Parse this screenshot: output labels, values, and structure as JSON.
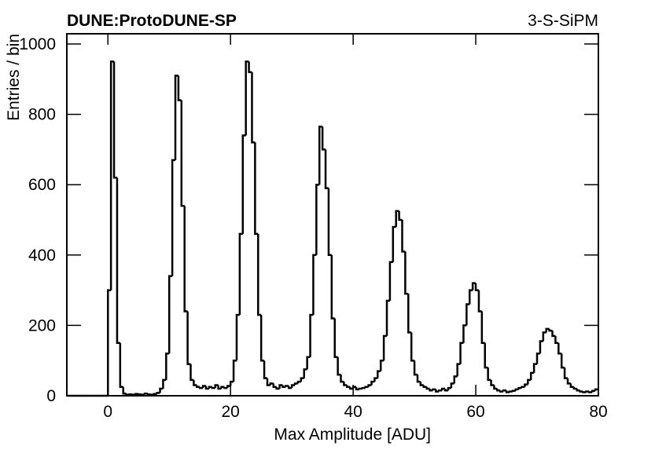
{
  "chart_data": {
    "type": "histogram",
    "title": "DUNE:ProtoDUNE-SP",
    "subtitle": "3-S-SiPM",
    "x_label": "Max Amplitude [ADU]",
    "y_label": "Entries / bin",
    "color": "#000000",
    "xlim": [
      -6.7,
      80
    ],
    "ylim": [
      0,
      1029
    ],
    "xticks": [
      0,
      20,
      40,
      60,
      80
    ],
    "yticks": [
      0,
      200,
      400,
      600,
      800,
      1000
    ],
    "bins": [
      -6.5,
      -6,
      -5.5,
      -5,
      -4.5,
      -4,
      -3.5,
      -3,
      -2.5,
      -2,
      -1.5,
      -1,
      -0.5,
      0,
      0.5,
      1,
      1.5,
      2,
      2.5,
      3,
      3.5,
      4,
      4.5,
      5,
      5.5,
      6,
      6.5,
      7,
      7.5,
      8,
      8.5,
      9,
      9.5,
      10,
      10.5,
      11,
      11.5,
      12,
      12.5,
      13,
      13.5,
      14,
      14.5,
      15,
      15.5,
      16,
      16.5,
      17,
      17.5,
      18,
      18.5,
      19,
      19.5,
      20,
      20.5,
      21,
      21.5,
      22,
      22.5,
      23,
      23.5,
      24,
      24.5,
      25,
      25.5,
      26,
      26.5,
      27,
      27.5,
      28,
      28.5,
      29,
      29.5,
      30,
      30.5,
      31,
      31.5,
      32,
      32.5,
      33,
      33.5,
      34,
      34.5,
      35,
      35.5,
      36,
      36.5,
      37,
      37.5,
      38,
      38.5,
      39,
      39.5,
      40,
      40.5,
      41,
      41.5,
      42,
      42.5,
      43,
      43.5,
      44,
      44.5,
      45,
      45.5,
      46,
      46.5,
      47,
      47.5,
      48,
      48.5,
      49,
      49.5,
      50,
      50.5,
      51,
      51.5,
      52,
      52.5,
      53,
      53.5,
      54,
      54.5,
      55,
      55.5,
      56,
      56.5,
      57,
      57.5,
      58,
      58.5,
      59,
      59.5,
      60,
      60.5,
      61,
      61.5,
      62,
      62.5,
      63,
      63.5,
      64,
      64.5,
      65,
      65.5,
      66,
      66.5,
      67,
      67.5,
      68,
      68.5,
      69,
      69.5,
      70,
      70.5,
      71,
      71.5,
      72,
      72.5,
      73,
      73.5,
      74,
      74.5,
      75,
      75.5,
      76,
      76.5,
      77,
      77.5,
      78,
      78.5,
      79,
      79.5,
      80
    ],
    "values": [
      0,
      0,
      0,
      0,
      0,
      0,
      0,
      0,
      0,
      0,
      0,
      0,
      0,
      300,
      950,
      620,
      150,
      25,
      6,
      3,
      4,
      3,
      5,
      4,
      3,
      6,
      4,
      3,
      5,
      8,
      20,
      45,
      120,
      340,
      670,
      910,
      840,
      540,
      240,
      90,
      45,
      30,
      25,
      22,
      28,
      20,
      25,
      22,
      30,
      20,
      25,
      22,
      28,
      40,
      100,
      230,
      460,
      740,
      950,
      920,
      720,
      460,
      230,
      100,
      50,
      30,
      35,
      25,
      20,
      30,
      25,
      28,
      22,
      30,
      35,
      40,
      50,
      75,
      110,
      230,
      400,
      600,
      765,
      700,
      590,
      400,
      220,
      110,
      60,
      40,
      30,
      25,
      20,
      25,
      18,
      20,
      22,
      25,
      30,
      40,
      50,
      70,
      100,
      170,
      270,
      380,
      480,
      525,
      500,
      410,
      290,
      180,
      100,
      60,
      40,
      30,
      25,
      20,
      15,
      18,
      12,
      15,
      20,
      15,
      22,
      35,
      55,
      90,
      150,
      200,
      260,
      300,
      320,
      300,
      240,
      150,
      80,
      45,
      30,
      20,
      15,
      12,
      15,
      10,
      12,
      14,
      18,
      22,
      25,
      32,
      45,
      65,
      90,
      120,
      155,
      180,
      190,
      185,
      170,
      150,
      120,
      80,
      50,
      35,
      25,
      20,
      15,
      12,
      10,
      12,
      10,
      14,
      18
    ]
  }
}
